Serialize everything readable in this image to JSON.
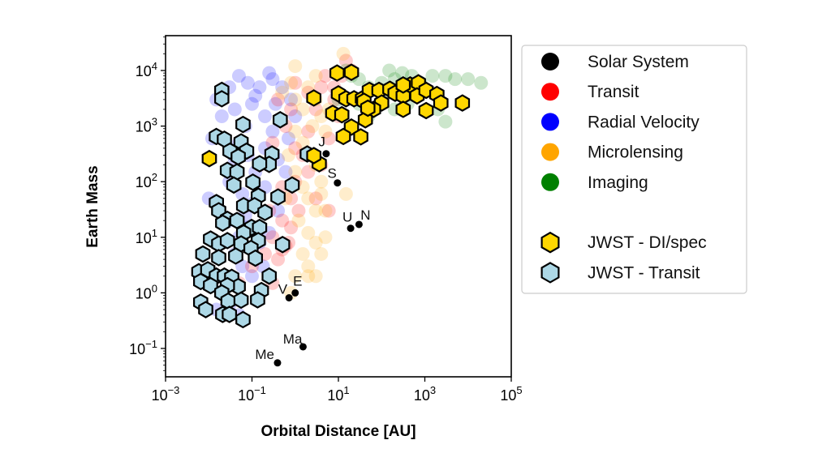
{
  "chart_data": {
    "type": "scatter",
    "title": "",
    "xlabel": "Orbital Distance [AU]",
    "ylabel": "Earth Mass",
    "xscale": "log",
    "yscale": "log",
    "xlim": [
      0.001,
      100000
    ],
    "ylim": [
      0.031,
      42000
    ],
    "grid": false,
    "legend_position": "outside-right",
    "x_ticks": [
      {
        "base": "10",
        "exp": "−3",
        "value": 0.001
      },
      {
        "base": "10",
        "exp": "−1",
        "value": 0.1
      },
      {
        "base": "10",
        "exp": "1",
        "value": 10
      },
      {
        "base": "10",
        "exp": "3",
        "value": 1000
      },
      {
        "base": "10",
        "exp": "5",
        "value": 100000
      }
    ],
    "y_ticks": [
      {
        "base": "10",
        "exp": "4",
        "value": 10000
      },
      {
        "base": "10",
        "exp": "3",
        "value": 1000
      },
      {
        "base": "10",
        "exp": "2",
        "value": 100
      },
      {
        "base": "10",
        "exp": "1",
        "value": 10
      },
      {
        "base": "10",
        "exp": "0",
        "value": 1
      },
      {
        "base": "10",
        "exp": "−1",
        "value": 0.1
      }
    ],
    "series": [
      {
        "name": "Radial Velocity",
        "marker": "circle",
        "color": "#0000ff",
        "alpha": 0.2,
        "points": [
          [
            0.015,
            3000
          ],
          [
            0.02,
            1500
          ],
          [
            0.03,
            5000
          ],
          [
            0.05,
            8000
          ],
          [
            0.08,
            6000
          ],
          [
            0.15,
            5000
          ],
          [
            0.3,
            7000
          ],
          [
            0.5,
            5000
          ],
          [
            0.04,
            2000
          ],
          [
            0.07,
            1000
          ],
          [
            0.1,
            2500
          ],
          [
            0.2,
            1500
          ],
          [
            0.3,
            800
          ],
          [
            0.05,
            500
          ],
          [
            0.08,
            300
          ],
          [
            0.12,
            150
          ],
          [
            0.2,
            400
          ],
          [
            0.4,
            250
          ],
          [
            0.6,
            150
          ],
          [
            0.03,
            100
          ],
          [
            0.06,
            60
          ],
          [
            0.1,
            40
          ],
          [
            0.2,
            80
          ],
          [
            0.4,
            30
          ],
          [
            0.03,
            20
          ],
          [
            0.05,
            10
          ],
          [
            0.08,
            15
          ],
          [
            0.15,
            8
          ],
          [
            0.25,
            12
          ],
          [
            0.04,
            5
          ],
          [
            0.06,
            3
          ],
          [
            0.1,
            2
          ],
          [
            0.02,
            1
          ],
          [
            0.03,
            0.6
          ],
          [
            0.05,
            0.4
          ],
          [
            0.015,
            0.5
          ],
          [
            0.01,
            50
          ],
          [
            0.012,
            600
          ],
          [
            0.8,
            3000
          ],
          [
            1,
            1500
          ],
          [
            0.7,
            600
          ],
          [
            0.35,
            2500
          ],
          [
            0.25,
            9000
          ],
          [
            0.12,
            3500
          ],
          [
            0.04,
            250
          ],
          [
            0.07,
            25
          ],
          [
            0.18,
            3
          ]
        ]
      },
      {
        "name": "Transit",
        "marker": "circle",
        "color": "#ff0000",
        "alpha": 0.2,
        "points": [
          [
            0.03,
            0.4
          ],
          [
            0.05,
            1.5
          ],
          [
            0.1,
            3
          ],
          [
            0.2,
            5
          ],
          [
            0.3,
            10
          ],
          [
            0.5,
            20
          ],
          [
            0.8,
            50
          ],
          [
            1,
            100
          ],
          [
            1.5,
            300
          ],
          [
            2,
            800
          ],
          [
            3,
            2000
          ],
          [
            4,
            5000
          ],
          [
            5,
            8000
          ],
          [
            8,
            3000
          ],
          [
            10,
            1500
          ],
          [
            12,
            8000
          ],
          [
            6,
            600
          ],
          [
            4,
            200
          ],
          [
            2,
            150
          ],
          [
            1,
            400
          ],
          [
            0.6,
            1000
          ],
          [
            0.4,
            3000
          ],
          [
            0.3,
            500
          ],
          [
            0.7,
            8
          ],
          [
            0.4,
            4
          ],
          [
            0.5,
            80
          ],
          [
            0.8,
            15
          ],
          [
            1.2,
            30
          ],
          [
            0.3,
            1.5
          ],
          [
            3,
            50
          ],
          [
            8,
            5000
          ],
          [
            15,
            15000
          ],
          [
            20,
            10000
          ],
          [
            2,
            4000
          ],
          [
            1,
            6000
          ],
          [
            0.8,
            2000
          ],
          [
            0.5,
            6
          ],
          [
            0.25,
            30
          ],
          [
            0.15,
            200
          ],
          [
            6,
            30
          ],
          [
            0.6,
            7
          ]
        ]
      },
      {
        "name": "Microlensing",
        "marker": "circle",
        "color": "#ffa500",
        "alpha": 0.2,
        "points": [
          [
            0.5,
            4000
          ],
          [
            0.8,
            6000
          ],
          [
            1,
            3000
          ],
          [
            1.5,
            2000
          ],
          [
            2,
            5000
          ],
          [
            3,
            3000
          ],
          [
            4,
            1500
          ],
          [
            5,
            800
          ],
          [
            1,
            800
          ],
          [
            1.5,
            500
          ],
          [
            2,
            300
          ],
          [
            3,
            200
          ],
          [
            4,
            100
          ],
          [
            1,
            150
          ],
          [
            1.5,
            80
          ],
          [
            2,
            50
          ],
          [
            3,
            30
          ],
          [
            1.2,
            20
          ],
          [
            2,
            12
          ],
          [
            3,
            8
          ],
          [
            1.5,
            5
          ],
          [
            2,
            3
          ],
          [
            1,
            2
          ],
          [
            0.8,
            1
          ],
          [
            4,
            5
          ],
          [
            5,
            30
          ],
          [
            2.5,
            1000
          ],
          [
            6,
            2000
          ],
          [
            3,
            8000
          ],
          [
            0.7,
            300
          ],
          [
            0.6,
            50
          ],
          [
            13,
            20000
          ],
          [
            15,
            60
          ],
          [
            1,
            12000
          ],
          [
            2,
            2
          ],
          [
            3,
            2
          ],
          [
            5,
            10
          ],
          [
            4,
            60
          ]
        ]
      },
      {
        "name": "Imaging",
        "marker": "circle",
        "color": "#008000",
        "alpha": 0.2,
        "points": [
          [
            10,
            3000
          ],
          [
            20,
            8000
          ],
          [
            30,
            7000
          ],
          [
            50,
            5000
          ],
          [
            100,
            6000
          ],
          [
            200,
            7000
          ],
          [
            300,
            9000
          ],
          [
            500,
            8000
          ],
          [
            800,
            6000
          ],
          [
            1500,
            8000
          ],
          [
            3000,
            8000
          ],
          [
            5000,
            7000
          ],
          [
            10000,
            7000
          ],
          [
            20000,
            6000
          ],
          [
            700,
            4000
          ],
          [
            2000,
            2000
          ],
          [
            3000,
            1200
          ],
          [
            100,
            3000
          ],
          [
            50,
            1500
          ],
          [
            200,
            2000
          ],
          [
            400,
            2500
          ],
          [
            30,
            2500
          ],
          [
            15,
            10000
          ],
          [
            150,
            10000
          ]
        ]
      },
      {
        "name": "JWST - Transit",
        "marker": "hexagon",
        "color": "#add8e6",
        "edgecolor": "#000000",
        "points": [
          [
            0.02,
            4400
          ],
          [
            0.02,
            3100
          ],
          [
            0.062,
            1070
          ],
          [
            0.45,
            1300
          ],
          [
            0.015,
            650
          ],
          [
            0.023,
            580
          ],
          [
            0.056,
            520
          ],
          [
            0.075,
            355
          ],
          [
            0.031,
            355
          ],
          [
            0.048,
            280
          ],
          [
            0.29,
            315
          ],
          [
            0.25,
            205
          ],
          [
            0.15,
            210
          ],
          [
            1.9,
            315
          ],
          [
            0.027,
            160
          ],
          [
            0.045,
            150
          ],
          [
            0.105,
            98
          ],
          [
            0.038,
            87
          ],
          [
            0.85,
            87
          ],
          [
            0.14,
            55
          ],
          [
            0.4,
            53
          ],
          [
            0.015,
            42
          ],
          [
            0.017,
            30
          ],
          [
            0.064,
            37
          ],
          [
            0.115,
            37
          ],
          [
            0.2,
            28
          ],
          [
            0.027,
            21
          ],
          [
            0.045,
            20
          ],
          [
            0.098,
            15
          ],
          [
            0.15,
            15
          ],
          [
            0.021,
            18
          ],
          [
            0.064,
            12
          ],
          [
            0.14,
            8.7
          ],
          [
            0.51,
            7.4
          ],
          [
            0.011,
            9.3
          ],
          [
            0.017,
            7.6
          ],
          [
            0.027,
            8.7
          ],
          [
            0.056,
            7.6
          ],
          [
            0.095,
            6.3
          ],
          [
            0.0073,
            5.0
          ],
          [
            0.017,
            4.3
          ],
          [
            0.042,
            4.6
          ],
          [
            0.12,
            4.2
          ],
          [
            0.0059,
            2.4
          ],
          [
            0.0065,
            1.6
          ],
          [
            0.0095,
            2.6
          ],
          [
            0.015,
            2.0
          ],
          [
            0.023,
            2.0
          ],
          [
            0.034,
            1.9
          ],
          [
            0.048,
            1.3
          ],
          [
            0.027,
            1.35
          ],
          [
            0.011,
            1.35
          ],
          [
            0.25,
            2.0
          ],
          [
            0.165,
            1.1
          ],
          [
            0.135,
            0.75
          ],
          [
            0.02,
            1.0
          ],
          [
            0.028,
            0.71
          ],
          [
            0.056,
            0.74
          ],
          [
            0.0065,
            0.68
          ],
          [
            0.0085,
            0.5
          ],
          [
            0.021,
            0.41
          ],
          [
            0.03,
            0.41
          ],
          [
            0.062,
            0.33
          ]
        ]
      },
      {
        "name": "JWST - DI/spec",
        "marker": "hexagon",
        "color": "#ffd700",
        "edgecolor": "#000000",
        "points": [
          [
            9.3,
            9000
          ],
          [
            20,
            9300
          ],
          [
            2.7,
            3200
          ],
          [
            10,
            3800
          ],
          [
            15,
            3100
          ],
          [
            23,
            3100
          ],
          [
            36,
            3100
          ],
          [
            52,
            4400
          ],
          [
            87,
            4400
          ],
          [
            100,
            2600
          ],
          [
            65,
            2000
          ],
          [
            155,
            4600
          ],
          [
            205,
            3900
          ],
          [
            315,
            3500
          ],
          [
            315,
            2000
          ],
          [
            460,
            5500
          ],
          [
            710,
            6000
          ],
          [
            660,
            3500
          ],
          [
            1070,
            4400
          ],
          [
            1900,
            3700
          ],
          [
            2350,
            2600
          ],
          [
            1070,
            1900
          ],
          [
            7400,
            2600
          ],
          [
            7.4,
            1700
          ],
          [
            12,
            1600
          ],
          [
            42,
            1300
          ],
          [
            20,
            960
          ],
          [
            13,
            650
          ],
          [
            33,
            640
          ],
          [
            0.0103,
            260
          ],
          [
            3.6,
            210
          ],
          [
            2.7,
            295
          ],
          [
            39,
            2800
          ],
          [
            48,
            2100
          ],
          [
            315,
            5500
          ]
        ]
      },
      {
        "name": "Solar System",
        "marker": "circle",
        "color": "#000000",
        "points": [
          {
            "label": "Me",
            "x": 0.39,
            "y": 0.055
          },
          {
            "label": "V",
            "x": 0.72,
            "y": 0.815
          },
          {
            "label": "E",
            "x": 1.0,
            "y": 1.0
          },
          {
            "label": "Ma",
            "x": 1.52,
            "y": 0.107
          },
          {
            "label": "J",
            "x": 5.2,
            "y": 318
          },
          {
            "label": "S",
            "x": 9.5,
            "y": 95
          },
          {
            "label": "U",
            "x": 19.2,
            "y": 14.5
          },
          {
            "label": "N",
            "x": 30,
            "y": 17
          }
        ]
      }
    ],
    "legend": [
      {
        "label": "Solar System",
        "marker": "circle",
        "color": "#000000"
      },
      {
        "label": "Transit",
        "marker": "circle",
        "color": "#ff0000"
      },
      {
        "label": "Radial Velocity",
        "marker": "circle",
        "color": "#0000ff"
      },
      {
        "label": "Microlensing",
        "marker": "circle",
        "color": "#ffa500"
      },
      {
        "label": "Imaging",
        "marker": "circle",
        "color": "#008000"
      },
      {
        "label": "",
        "marker": "none",
        "color": ""
      },
      {
        "label": "JWST - DI/spec",
        "marker": "hexagon",
        "color": "#ffd700"
      },
      {
        "label": "JWST - Transit",
        "marker": "hexagon",
        "color": "#add8e6"
      }
    ]
  }
}
